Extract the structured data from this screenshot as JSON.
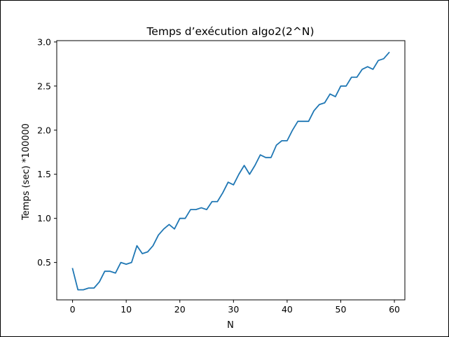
{
  "chart_data": {
    "type": "line",
    "title": "Temps d’exécution algo2(2^N)",
    "xlabel": "N",
    "ylabel": "Temps (sec) *100000",
    "xlim": [
      -2.95,
      61.95
    ],
    "ylim": [
      0.076,
      3.015
    ],
    "xticks": [
      0,
      10,
      20,
      30,
      40,
      50,
      60
    ],
    "yticks": [
      0.5,
      1.0,
      1.5,
      2.0,
      2.5,
      3.0
    ],
    "xtick_labels": [
      "0",
      "10",
      "20",
      "30",
      "40",
      "50",
      "60"
    ],
    "ytick_labels": [
      "0.5",
      "1.0",
      "1.5",
      "2.0",
      "2.5",
      "3.0"
    ],
    "grid": false,
    "line_color": "#1f77b4",
    "series": [
      {
        "x": [
          0,
          1,
          2,
          3,
          4,
          5,
          6,
          7,
          8,
          9,
          10,
          11,
          12,
          13,
          14,
          15,
          16,
          17,
          18,
          19,
          20,
          21,
          22,
          23,
          24,
          25,
          26,
          27,
          28,
          29,
          30,
          31,
          32,
          33,
          34,
          35,
          36,
          37,
          38,
          39,
          40,
          41,
          42,
          43,
          44,
          45,
          46,
          47,
          48,
          49,
          50,
          51,
          52,
          53,
          54,
          55,
          56,
          57,
          58,
          59
        ],
        "y": [
          0.43,
          0.19,
          0.19,
          0.21,
          0.21,
          0.28,
          0.4,
          0.4,
          0.38,
          0.5,
          0.48,
          0.5,
          0.69,
          0.6,
          0.62,
          0.69,
          0.81,
          0.88,
          0.93,
          0.88,
          1.0,
          1.0,
          1.1,
          1.1,
          1.12,
          1.1,
          1.19,
          1.19,
          1.29,
          1.41,
          1.38,
          1.5,
          1.6,
          1.5,
          1.6,
          1.72,
          1.69,
          1.69,
          1.83,
          1.88,
          1.88,
          2.0,
          2.1,
          2.1,
          2.1,
          2.22,
          2.29,
          2.31,
          2.41,
          2.38,
          2.5,
          2.5,
          2.6,
          2.6,
          2.69,
          2.72,
          2.69,
          2.79,
          2.81,
          2.88
        ]
      }
    ]
  }
}
